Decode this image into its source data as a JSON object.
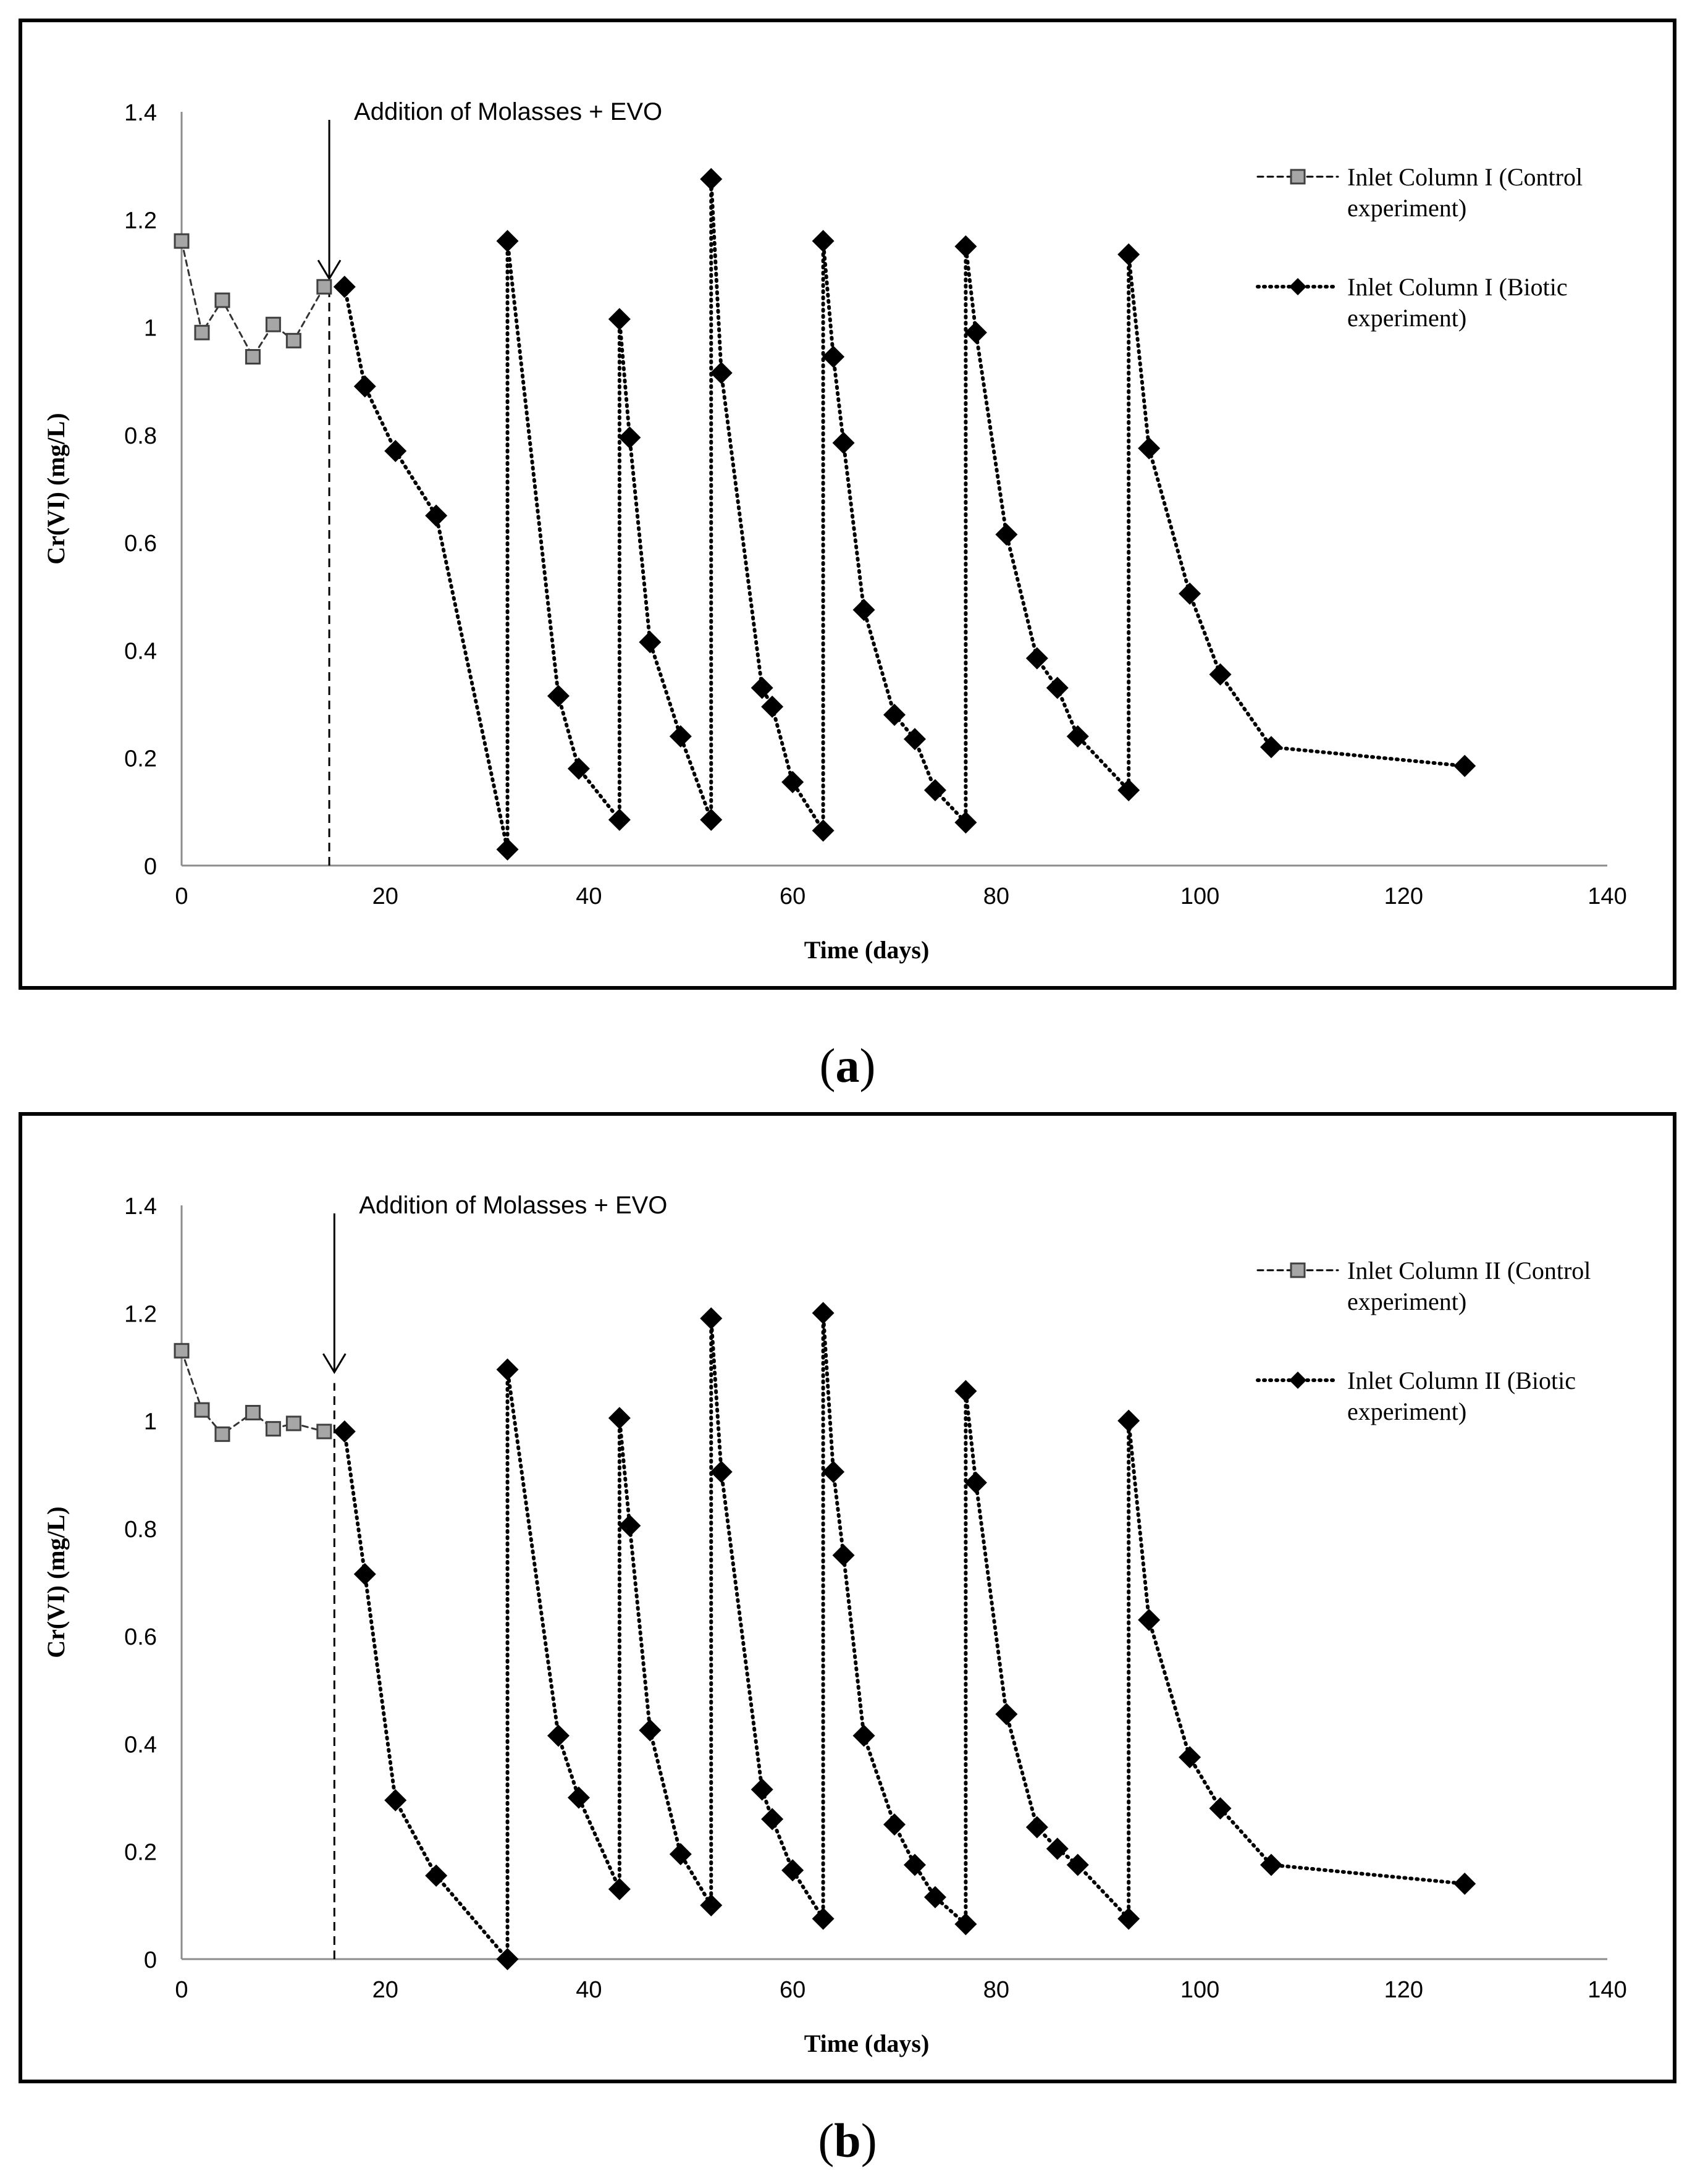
{
  "chart_data": [
    {
      "type": "line",
      "panel_label": "a",
      "xlabel": "Time (days)",
      "ylabel": "Cr(VI) (mg/L)",
      "xlim": [
        0,
        140
      ],
      "ylim": [
        0,
        1.4
      ],
      "xticks": [
        0,
        20,
        40,
        60,
        80,
        100,
        120,
        140
      ],
      "yticks": [
        0,
        0.2,
        0.4,
        0.6,
        0.8,
        1,
        1.2,
        1.4
      ],
      "ytick_labels": [
        "0",
        "0.2",
        "0.4",
        "0.6",
        "0.8",
        "1",
        "1.2",
        "1.4"
      ],
      "annotation": {
        "text": "Addition of Molasses + EVO",
        "x": 14.5
      },
      "series": [
        {
          "name": "control",
          "legend_lines": [
            "Inlet Column I (Control",
            "experiment)"
          ],
          "marker": "square",
          "x": [
            0,
            2,
            4,
            7,
            9,
            11,
            14
          ],
          "y": [
            1.16,
            0.99,
            1.05,
            0.945,
            1.005,
            0.975,
            1.075
          ]
        },
        {
          "name": "biotic",
          "legend_lines": [
            "Inlet Column I (Biotic",
            "experiment)"
          ],
          "marker": "diamond",
          "x": [
            16,
            18,
            21,
            25,
            32,
            32,
            37,
            39,
            43,
            43,
            44,
            46,
            49,
            52,
            52,
            53,
            57,
            58,
            60,
            63,
            63,
            64,
            65,
            67,
            70,
            72,
            74,
            77,
            77,
            78,
            81,
            84,
            86,
            88,
            93,
            93,
            95,
            99,
            102,
            107,
            126
          ],
          "y": [
            1.075,
            0.89,
            0.77,
            0.65,
            0.03,
            1.16,
            0.315,
            0.18,
            0.085,
            1.015,
            0.795,
            0.415,
            0.24,
            0.085,
            1.275,
            0.915,
            0.33,
            0.295,
            0.155,
            0.065,
            1.16,
            0.945,
            0.785,
            0.475,
            0.28,
            0.235,
            0.14,
            0.08,
            1.15,
            0.99,
            0.615,
            0.385,
            0.33,
            0.24,
            0.14,
            1.135,
            0.775,
            0.505,
            0.355,
            0.22,
            0.185
          ]
        }
      ]
    },
    {
      "type": "line",
      "panel_label": "b",
      "xlabel": "Time (days)",
      "ylabel": "Cr(VI) (mg/L)",
      "xlim": [
        0,
        140
      ],
      "ylim": [
        0,
        1.4
      ],
      "xticks": [
        0,
        20,
        40,
        60,
        80,
        100,
        120,
        140
      ],
      "yticks": [
        0,
        0.2,
        0.4,
        0.6,
        0.8,
        1,
        1.2,
        1.4
      ],
      "ytick_labels": [
        "0",
        "0.2",
        "0.4",
        "0.6",
        "0.8",
        "1",
        "1.2",
        "1.4"
      ],
      "annotation": {
        "text": "Addition of Molasses  + EVO",
        "x": 15
      },
      "series": [
        {
          "name": "control",
          "legend_lines": [
            "Inlet Column II (Control",
            "experiment)"
          ],
          "marker": "square",
          "x": [
            0,
            2,
            4,
            7,
            9,
            11,
            14
          ],
          "y": [
            1.13,
            1.02,
            0.975,
            1.015,
            0.985,
            0.995,
            0.98
          ]
        },
        {
          "name": "biotic",
          "legend_lines": [
            "Inlet Column II (Biotic",
            "experiment)"
          ],
          "marker": "diamond",
          "x": [
            16,
            18,
            21,
            25,
            32,
            32,
            37,
            39,
            43,
            43,
            44,
            46,
            49,
            52,
            52,
            53,
            57,
            58,
            60,
            63,
            63,
            64,
            65,
            67,
            70,
            72,
            74,
            77,
            77,
            78,
            81,
            84,
            86,
            88,
            93,
            93,
            95,
            99,
            102,
            107,
            126
          ],
          "y": [
            0.98,
            0.715,
            0.295,
            0.155,
            0.0,
            1.095,
            0.415,
            0.3,
            0.13,
            1.005,
            0.805,
            0.425,
            0.195,
            0.1,
            1.19,
            0.905,
            0.315,
            0.26,
            0.165,
            0.075,
            1.2,
            0.905,
            0.75,
            0.415,
            0.25,
            0.175,
            0.115,
            0.065,
            1.055,
            0.885,
            0.455,
            0.245,
            0.205,
            0.175,
            0.075,
            1.0,
            0.63,
            0.375,
            0.28,
            0.175,
            0.14
          ]
        }
      ]
    }
  ]
}
